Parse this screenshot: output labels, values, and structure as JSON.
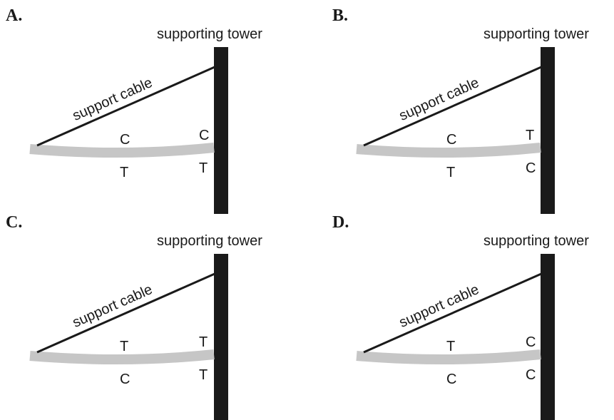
{
  "tower_label": "supporting tower",
  "cable_label": "support cable",
  "colors": {
    "tower": "#1a1a1a",
    "beam": "#c6c6c6",
    "cable": "#1a1a1a",
    "text": "#1a1a1a"
  },
  "panels": [
    {
      "letter": "A.",
      "top_mid": "C",
      "bottom_mid": "T",
      "top_tower": "C",
      "bottom_tower": "T"
    },
    {
      "letter": "B.",
      "top_mid": "C",
      "bottom_mid": "T",
      "top_tower": "T",
      "bottom_tower": "C"
    },
    {
      "letter": "C.",
      "top_mid": "T",
      "bottom_mid": "C",
      "top_tower": "T",
      "bottom_tower": "T"
    },
    {
      "letter": "D.",
      "top_mid": "T",
      "bottom_mid": "C",
      "top_tower": "C",
      "bottom_tower": "C"
    }
  ]
}
